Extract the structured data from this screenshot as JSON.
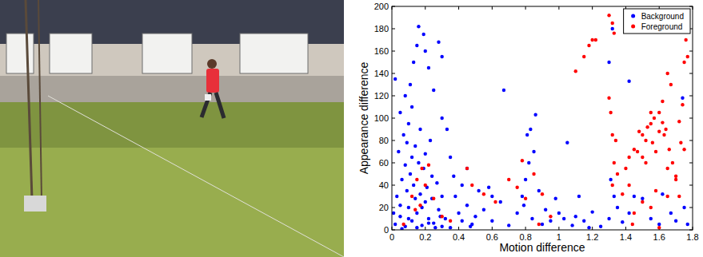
{
  "chart_data": {
    "type": "scatter",
    "x_label": "Motion difference",
    "y_label": "Appearance difference",
    "xlim": [
      0,
      1.8
    ],
    "ylim": [
      0,
      200
    ],
    "xticks": [
      0,
      0.2,
      0.4,
      0.6,
      0.8,
      1,
      1.2,
      1.4,
      1.6,
      1.8
    ],
    "yticks": [
      0,
      20,
      40,
      60,
      80,
      100,
      120,
      140,
      160,
      180,
      200
    ],
    "legend": "upper right",
    "marker": "dot",
    "series": [
      {
        "name": "Background",
        "color": "#0000ff",
        "x": [
          0.02,
          0.05,
          0.08,
          0.1,
          0.12,
          0.15,
          0.18,
          0.2,
          0.22,
          0.25,
          0.28,
          0.3,
          0.03,
          0.06,
          0.09,
          0.11,
          0.13,
          0.16,
          0.19,
          0.21,
          0.24,
          0.27,
          0.04,
          0.07,
          0.1,
          0.12,
          0.14,
          0.17,
          0.2,
          0.23,
          0.08,
          0.11,
          0.13,
          0.15,
          0.16,
          0.19,
          0.2,
          0.22,
          0.25,
          0.02,
          0.05,
          0.28,
          0.3,
          0.33,
          0.35,
          0.38,
          0.4,
          0.42,
          0.45,
          0.48,
          0.5,
          0.35,
          0.32,
          0.37,
          0.55,
          0.6,
          0.65,
          0.67,
          0.58,
          0.7,
          0.75,
          0.78,
          0.8,
          0.82,
          0.81,
          0.83,
          0.85,
          0.86,
          0.79,
          0.84,
          0.88,
          0.9,
          0.92,
          0.95,
          1.0,
          1.03,
          1.05,
          1.08,
          1.1,
          1.15,
          1.2,
          1.25,
          1.3,
          1.33,
          1.35,
          1.38,
          1.42,
          1.45,
          1.5,
          1.55,
          1.6,
          1.62,
          1.67,
          1.7,
          1.75,
          1.77,
          1.3,
          1.32,
          1.42,
          1.74,
          1.31,
          0.15,
          0.06,
          0.1,
          0.14,
          0.17,
          0.24,
          0.26,
          0.18,
          0.12,
          0.09,
          0.08,
          0.05,
          0.01,
          0.22,
          0.29,
          0.6,
          0.98,
          1.12,
          1.18,
          0.42,
          0.45,
          0.52,
          0.3,
          0.47,
          0.3
        ],
        "values": [
          5,
          12,
          3,
          20,
          8,
          15,
          4,
          25,
          10,
          6,
          18,
          3,
          30,
          45,
          35,
          50,
          40,
          60,
          55,
          38,
          28,
          42,
          70,
          85,
          95,
          110,
          75,
          90,
          68,
          80,
          120,
          130,
          150,
          165,
          182,
          175,
          160,
          145,
          125,
          135,
          105,
          168,
          100,
          90,
          65,
          30,
          15,
          8,
          22,
          5,
          12,
          2,
          10,
          48,
          18,
          8,
          25,
          125,
          38,
          4,
          15,
          30,
          45,
          60,
          85,
          90,
          70,
          103,
          22,
          10,
          35,
          5,
          18,
          8,
          15,
          10,
          78,
          4,
          12,
          8,
          16,
          3,
          10,
          30,
          20,
          7,
          15,
          30,
          28,
          10,
          5,
          32,
          15,
          8,
          20,
          5,
          150,
          180,
          133,
          118,
          45,
          2,
          1,
          10,
          28,
          32,
          48,
          2,
          20,
          65,
          78,
          58,
          22,
          15,
          6,
          12,
          30,
          28,
          30,
          2,
          40,
          55,
          35,
          155,
          3,
          30
        ]
      },
      {
        "name": "Foreground",
        "color": "#ff0000",
        "x": [
          0.07,
          0.12,
          0.15,
          0.18,
          0.2,
          0.22,
          0.25,
          0.17,
          0.14,
          0.3,
          0.45,
          0.48,
          0.62,
          0.7,
          0.75,
          0.78,
          0.8,
          0.85,
          0.88,
          0.9,
          0.95,
          0.55,
          0.35,
          1.1,
          1.15,
          1.18,
          1.2,
          1.22,
          1.3,
          1.32,
          1.33,
          1.3,
          1.31,
          1.32,
          1.34,
          1.33,
          1.35,
          1.32,
          1.4,
          1.42,
          1.45,
          1.47,
          1.48,
          1.5,
          1.5,
          1.52,
          1.53,
          1.55,
          1.56,
          1.57,
          1.58,
          1.6,
          1.6,
          1.62,
          1.62,
          1.63,
          1.64,
          1.65,
          1.66,
          1.67,
          1.65,
          1.68,
          1.7,
          1.72,
          1.73,
          1.74,
          1.75,
          1.76,
          1.75,
          1.77,
          1.7,
          1.5,
          1.55,
          1.45,
          1.38,
          1.42,
          1.58,
          1.44,
          1.65,
          1.6,
          1.72,
          1.55,
          1.52
        ],
        "values": [
          5,
          30,
          45,
          55,
          40,
          58,
          28,
          22,
          18,
          12,
          55,
          40,
          25,
          45,
          38,
          62,
          28,
          50,
          5,
          32,
          12,
          32,
          8,
          142,
          155,
          165,
          170,
          170,
          192,
          185,
          176,
          118,
          105,
          85,
          80,
          60,
          50,
          40,
          55,
          65,
          72,
          70,
          88,
          65,
          85,
          80,
          92,
          95,
          78,
          100,
          70,
          105,
          88,
          115,
          96,
          85,
          90,
          55,
          72,
          130,
          140,
          60,
          48,
          30,
          78,
          112,
          72,
          170,
          150,
          155,
          45,
          25,
          20,
          15,
          32,
          40,
          35,
          5,
          30,
          2,
          97,
          105,
          60
        ]
      }
    ]
  }
}
